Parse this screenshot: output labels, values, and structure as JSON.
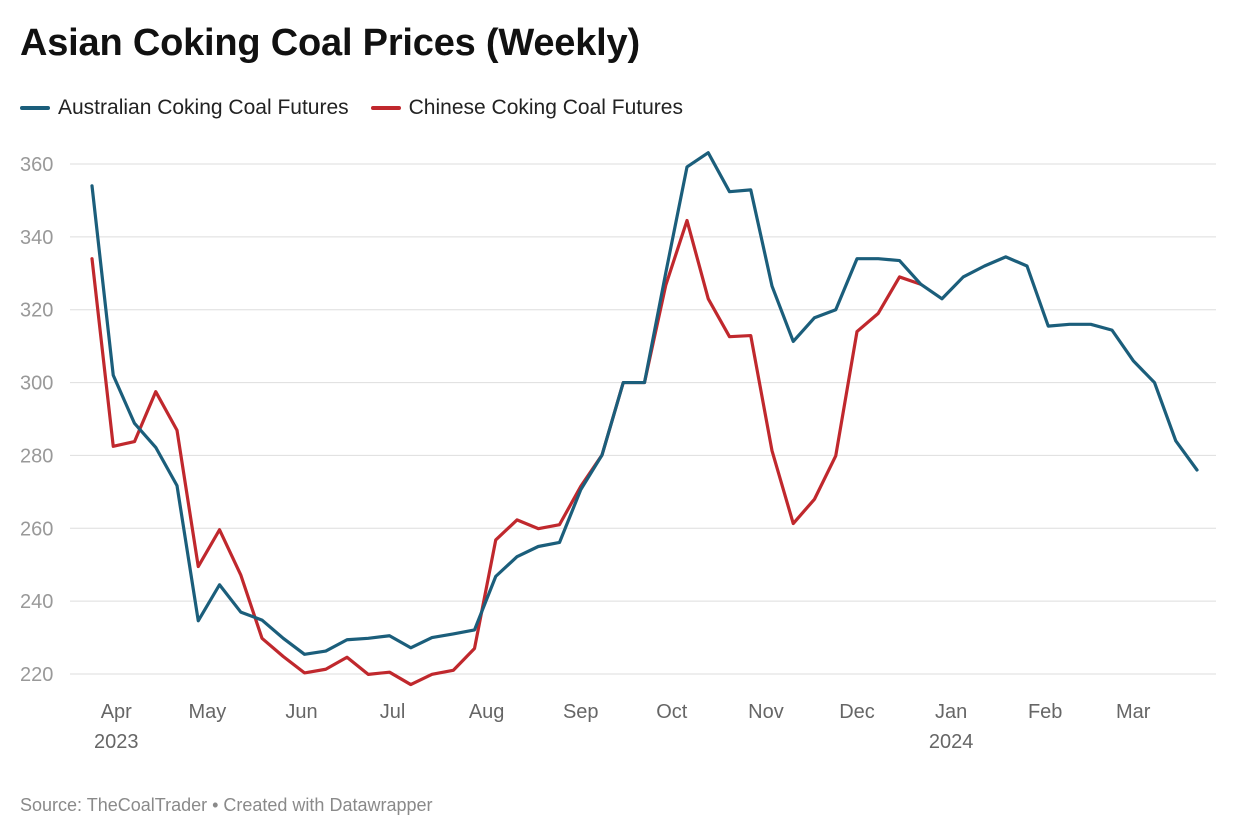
{
  "chart_data": {
    "type": "line",
    "title": "Asian Coking Coal Prices (Weekly)",
    "source": "Source: TheCoalTrader • Created with Datawrapper",
    "ylim": [
      215,
      365
    ],
    "y_ticks": [
      220,
      240,
      260,
      280,
      300,
      320,
      340,
      360
    ],
    "grid": true,
    "legend_position": "top-left",
    "x_start_date": "2023-03-24",
    "x_end_date": "2024-03-22",
    "x_tick_labels": [
      {
        "date": "2023-04-01",
        "label": "Apr",
        "sub": "2023"
      },
      {
        "date": "2023-05-01",
        "label": "May",
        "sub": ""
      },
      {
        "date": "2023-06-01",
        "label": "Jun",
        "sub": ""
      },
      {
        "date": "2023-07-01",
        "label": "Jul",
        "sub": ""
      },
      {
        "date": "2023-08-01",
        "label": "Aug",
        "sub": ""
      },
      {
        "date": "2023-09-01",
        "label": "Sep",
        "sub": ""
      },
      {
        "date": "2023-10-01",
        "label": "Oct",
        "sub": ""
      },
      {
        "date": "2023-11-01",
        "label": "Nov",
        "sub": ""
      },
      {
        "date": "2023-12-01",
        "label": "Dec",
        "sub": ""
      },
      {
        "date": "2024-01-01",
        "label": "Jan",
        "sub": "2024"
      },
      {
        "date": "2024-02-01",
        "label": "Feb",
        "sub": ""
      },
      {
        "date": "2024-03-01",
        "label": "Mar",
        "sub": ""
      }
    ],
    "x": [
      "2023-03-24",
      "2023-03-31",
      "2023-04-07",
      "2023-04-14",
      "2023-04-21",
      "2023-04-28",
      "2023-05-05",
      "2023-05-12",
      "2023-05-19",
      "2023-05-26",
      "2023-06-02",
      "2023-06-09",
      "2023-06-16",
      "2023-06-23",
      "2023-06-30",
      "2023-07-07",
      "2023-07-14",
      "2023-07-21",
      "2023-07-28",
      "2023-08-04",
      "2023-08-11",
      "2023-08-18",
      "2023-08-25",
      "2023-09-01",
      "2023-09-08",
      "2023-09-15",
      "2023-09-22",
      "2023-09-29",
      "2023-10-06",
      "2023-10-13",
      "2023-10-20",
      "2023-10-27",
      "2023-11-03",
      "2023-11-10",
      "2023-11-17",
      "2023-11-24",
      "2023-12-01",
      "2023-12-08",
      "2023-12-15",
      "2023-12-22",
      "2023-12-29",
      "2024-01-05",
      "2024-01-12",
      "2024-01-19",
      "2024-01-26",
      "2024-02-02",
      "2024-02-09",
      "2024-02-16",
      "2024-02-23",
      "2024-03-01",
      "2024-03-08",
      "2024-03-15",
      "2024-03-22"
    ],
    "series": [
      {
        "name": "Australian Coking Coal Futures",
        "color": "#1b5e7b",
        "values": [
          354.0,
          302.0,
          288.8,
          282.2,
          271.7,
          234.6,
          244.5,
          237.0,
          234.8,
          229.8,
          225.4,
          226.3,
          229.4,
          229.8,
          230.5,
          227.2,
          230.0,
          231.0,
          232.1,
          246.8,
          252.2,
          255.0,
          256.1,
          270.6,
          280.1,
          300.0,
          300.0,
          330.1,
          359.2,
          363.1,
          352.4,
          352.9,
          326.5,
          311.3,
          317.8,
          320.0,
          334.0,
          334.0,
          333.5,
          327.0,
          323.0,
          329.0,
          332.0,
          334.5,
          332.0,
          315.5,
          316.0,
          316.0,
          314.4,
          306.0,
          300.0,
          284.0,
          276.0
        ]
      },
      {
        "name": "Chinese Coking Coal Futures",
        "color": "#c0282d",
        "values": [
          334.0,
          282.5,
          283.8,
          297.5,
          286.9,
          249.5,
          259.6,
          247.2,
          229.8,
          224.8,
          220.3,
          221.3,
          224.6,
          219.9,
          220.5,
          217.1,
          219.9,
          221.0,
          227.0,
          256.8,
          262.3,
          259.9,
          261.0,
          271.5,
          280.1,
          300.0,
          300.0,
          326.7,
          344.5,
          323.0,
          312.6,
          312.9,
          281.3,
          261.3,
          268.0,
          279.9,
          314.0,
          319.0,
          329.0,
          327.0,
          null,
          null,
          null,
          null,
          null,
          null,
          null,
          null,
          null,
          null,
          null,
          null,
          null
        ]
      }
    ]
  }
}
